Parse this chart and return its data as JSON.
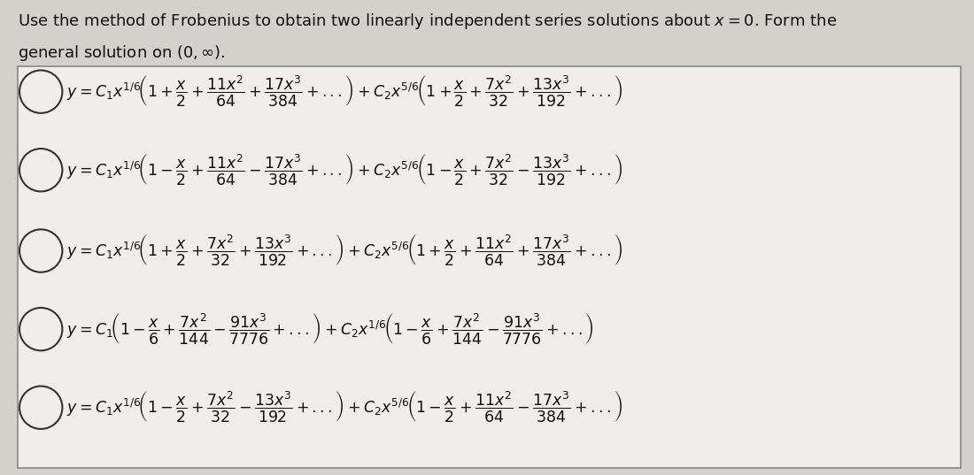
{
  "title_line1": "Use the method of Frobenius to obtain two linearly independent series solutions about $x = 0$. Form the",
  "title_line2": "general solution on $(0, \\infty)$.",
  "options": [
    "$y = C_1x^{1/6}\\!\\left(1 + \\dfrac{x}{2} + \\dfrac{11x^2}{64} + \\dfrac{17x^3}{384} + ...\\right) + C_2x^{5/6}\\!\\left(1 + \\dfrac{x}{2} + \\dfrac{7x^2}{32} + \\dfrac{13x^3}{192} + ...\\right)$",
    "$y = C_1x^{1/6}\\!\\left(1 - \\dfrac{x}{2} + \\dfrac{11x^2}{64} - \\dfrac{17x^3}{384} + ...\\right) + C_2x^{5/6}\\!\\left(1 - \\dfrac{x}{2} + \\dfrac{7x^2}{32} - \\dfrac{13x^3}{192} + ...\\right)$",
    "$y = C_1x^{1/6}\\!\\left(1 + \\dfrac{x}{2} + \\dfrac{7x^2}{32} + \\dfrac{13x^3}{192} + ...\\right) + C_2x^{5/6}\\!\\left(1 + \\dfrac{x}{2} + \\dfrac{11x^2}{64} + \\dfrac{17x^3}{384} + ...\\right)$",
    "$y = C_1\\!\\left(1 - \\dfrac{x}{6} + \\dfrac{7x^2}{144} - \\dfrac{91x^3}{7776} + ...\\right) + C_2x^{1/6}\\!\\left(1 - \\dfrac{x}{6} + \\dfrac{7x^2}{144} - \\dfrac{91x^3}{7776} + ...\\right)$",
    "$y = C_1x^{1/6}\\!\\left(1 - \\dfrac{x}{2} + \\dfrac{7x^2}{32} - \\dfrac{13x^3}{192} + ...\\right) + C_2x^{5/6}\\!\\left(1 - \\dfrac{x}{2} + \\dfrac{11x^2}{64} - \\dfrac{17x^3}{384} + ...\\right)$"
  ],
  "bg_color": "#d4d0cc",
  "box_color": "#f0eeeb",
  "text_color": "#111111",
  "title_fontsize": 13.0,
  "option_fontsize": 12.5,
  "box_edge_color": "#888888"
}
